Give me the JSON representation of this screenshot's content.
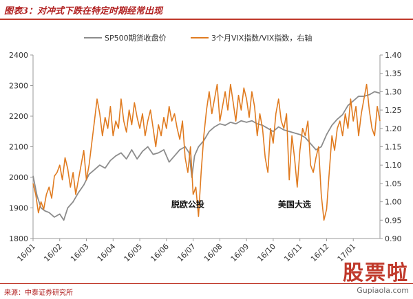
{
  "header": {
    "title": "图表3：对冲式下跌在特定时期经常出现"
  },
  "footer": {
    "source": "来源：中泰证券研究所"
  },
  "watermark": {
    "main": "股票啦",
    "sub": "Gupiaola.com"
  },
  "colors": {
    "spx": "#8c8c8c",
    "vix": "#e07b20",
    "axis": "#999999",
    "title": "#b22222"
  },
  "chart_data": {
    "type": "line",
    "title": "",
    "legend": [
      {
        "name": "SP500期货收盘价",
        "color": "#8c8c8c"
      },
      {
        "name": "3个月VIX指数/VIX指数，右轴",
        "color": "#e07b20"
      }
    ],
    "legend_position": "top",
    "x_ticks": [
      "16/01",
      "16/02",
      "16/03",
      "16/04",
      "16/05",
      "16/06",
      "16/07",
      "16/08",
      "16/09",
      "16/10",
      "16/11",
      "16/12",
      "17/01"
    ],
    "x_range": [
      0,
      13
    ],
    "y_left": {
      "min": 1800,
      "max": 2400,
      "ticks": [
        1800,
        1900,
        2000,
        2100,
        2200,
        2300,
        2400
      ]
    },
    "y_right": {
      "min": 0.9,
      "max": 1.4,
      "ticks": [
        "0.90",
        "0.95",
        "1.00",
        "1.05",
        "1.10",
        "1.15",
        "1.20",
        "1.25",
        "1.30",
        "1.35",
        "1.40"
      ]
    },
    "grid": false,
    "annotations": [
      {
        "text": "脱欧公投",
        "x": 5.8,
        "y_right": 0.985
      },
      {
        "text": "美国大选",
        "x": 9.8,
        "y_right": 0.985
      }
    ],
    "series": [
      {
        "name": "SP500期货收盘价",
        "axis": "left",
        "x": [
          0,
          0.15,
          0.3,
          0.45,
          0.6,
          0.8,
          1.0,
          1.15,
          1.3,
          1.5,
          1.7,
          1.9,
          2.1,
          2.3,
          2.5,
          2.7,
          2.9,
          3.1,
          3.3,
          3.5,
          3.7,
          3.9,
          4.1,
          4.3,
          4.5,
          4.7,
          4.9,
          5.1,
          5.3,
          5.5,
          5.7,
          5.85,
          5.95,
          6.05,
          6.2,
          6.4,
          6.6,
          6.8,
          7.0,
          7.2,
          7.4,
          7.6,
          7.8,
          8.0,
          8.2,
          8.4,
          8.6,
          8.8,
          9.0,
          9.2,
          9.4,
          9.6,
          9.8,
          10.0,
          10.2,
          10.4,
          10.6,
          10.8,
          11.0,
          11.2,
          11.4,
          11.6,
          11.8,
          12.0,
          12.2,
          12.4,
          12.6,
          12.8,
          13.0
        ],
        "values": [
          2005,
          1940,
          1900,
          1890,
          1885,
          1870,
          1880,
          1860,
          1900,
          1920,
          1950,
          1975,
          2010,
          2025,
          2040,
          2030,
          2055,
          2070,
          2080,
          2060,
          2090,
          2060,
          2085,
          2100,
          2075,
          2080,
          2090,
          2050,
          2070,
          2090,
          2100,
          2080,
          2000,
          2070,
          2100,
          2120,
          2150,
          2165,
          2175,
          2170,
          2180,
          2175,
          2185,
          2180,
          2185,
          2175,
          2170,
          2160,
          2150,
          2165,
          2155,
          2150,
          2145,
          2140,
          2130,
          2110,
          2090,
          2100,
          2140,
          2170,
          2190,
          2205,
          2235,
          2250,
          2265,
          2265,
          2270,
          2280,
          2275
        ]
      },
      {
        "name": "3个月VIX指数/VIX指数，右轴",
        "axis": "right",
        "x": [
          0,
          0.1,
          0.2,
          0.3,
          0.4,
          0.5,
          0.6,
          0.7,
          0.8,
          0.9,
          1.0,
          1.1,
          1.2,
          1.3,
          1.4,
          1.5,
          1.6,
          1.7,
          1.8,
          1.9,
          2.0,
          2.1,
          2.2,
          2.3,
          2.4,
          2.5,
          2.6,
          2.7,
          2.8,
          2.9,
          3.0,
          3.1,
          3.2,
          3.3,
          3.4,
          3.5,
          3.6,
          3.7,
          3.8,
          3.9,
          4.0,
          4.1,
          4.2,
          4.3,
          4.4,
          4.5,
          4.6,
          4.7,
          4.8,
          4.9,
          5.0,
          5.1,
          5.2,
          5.3,
          5.4,
          5.5,
          5.6,
          5.7,
          5.8,
          5.9,
          6.0,
          6.1,
          6.2,
          6.3,
          6.4,
          6.5,
          6.6,
          6.7,
          6.8,
          6.9,
          7.0,
          7.1,
          7.2,
          7.3,
          7.4,
          7.5,
          7.6,
          7.7,
          7.8,
          7.9,
          8.0,
          8.1,
          8.2,
          8.3,
          8.4,
          8.5,
          8.6,
          8.7,
          8.8,
          8.9,
          9.0,
          9.1,
          9.2,
          9.3,
          9.4,
          9.5,
          9.6,
          9.7,
          9.8,
          9.9,
          10.0,
          10.1,
          10.2,
          10.3,
          10.4,
          10.5,
          10.6,
          10.7,
          10.8,
          10.9,
          11.0,
          11.1,
          11.2,
          11.3,
          11.4,
          11.5,
          11.6,
          11.7,
          11.8,
          11.9,
          12.0,
          12.1,
          12.2,
          12.3,
          12.4,
          12.5,
          12.6,
          12.7,
          12.8,
          12.9,
          13.0
        ],
        "values": [
          1.05,
          1.02,
          0.97,
          1.0,
          0.98,
          1.02,
          1.04,
          1.01,
          1.07,
          1.08,
          1.1,
          1.06,
          1.12,
          1.09,
          1.04,
          1.08,
          1.02,
          1.06,
          1.1,
          1.14,
          1.06,
          1.1,
          1.16,
          1.22,
          1.28,
          1.24,
          1.18,
          1.23,
          1.2,
          1.26,
          1.18,
          1.22,
          1.2,
          1.28,
          1.22,
          1.19,
          1.25,
          1.21,
          1.27,
          1.23,
          1.2,
          1.24,
          1.18,
          1.22,
          1.25,
          1.2,
          1.15,
          1.21,
          1.18,
          1.23,
          1.2,
          1.26,
          1.22,
          1.24,
          1.2,
          1.17,
          1.22,
          1.12,
          1.08,
          1.15,
          1.02,
          1.04,
          0.96,
          1.08,
          1.18,
          1.25,
          1.3,
          1.24,
          1.28,
          1.32,
          1.22,
          1.26,
          1.3,
          1.25,
          1.32,
          1.27,
          1.22,
          1.29,
          1.25,
          1.31,
          1.28,
          1.23,
          1.3,
          1.26,
          1.18,
          1.24,
          1.2,
          1.12,
          1.08,
          1.2,
          1.16,
          1.24,
          1.28,
          1.22,
          1.2,
          1.24,
          1.06,
          1.18,
          1.12,
          1.04,
          1.14,
          1.2,
          1.18,
          1.22,
          1.1,
          1.08,
          1.12,
          1.15,
          1.02,
          0.95,
          0.98,
          1.08,
          1.18,
          1.14,
          1.2,
          1.22,
          1.18,
          1.24,
          1.2,
          1.28,
          1.22,
          1.26,
          1.18,
          1.24,
          1.28,
          1.32,
          1.25,
          1.2,
          1.18,
          1.26,
          1.22
        ]
      }
    ]
  }
}
